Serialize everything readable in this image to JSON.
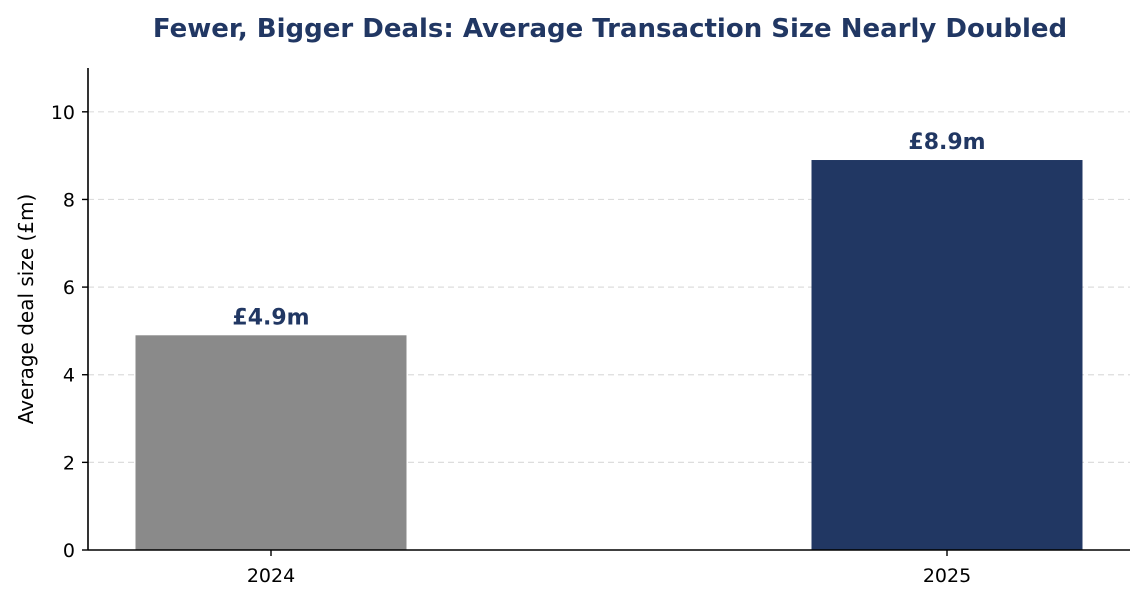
{
  "chart_data": {
    "type": "bar",
    "title": "Fewer, Bigger Deals: Average Transaction Size Nearly Doubled",
    "xlabel": "",
    "ylabel": "Average deal size (£m)",
    "categories": [
      "2024",
      "2025"
    ],
    "values": [
      4.9,
      8.9
    ],
    "value_labels": [
      "£4.9m",
      "£8.9m"
    ],
    "bar_colors": [
      "#8a8a8a",
      "#213763"
    ],
    "title_color": "#213763",
    "value_label_color": "#213763",
    "grid_color": "#dddddd",
    "ylim": [
      0,
      11
    ],
    "yticks": [
      0,
      2,
      4,
      6,
      8,
      10
    ],
    "ytick_labels": [
      "0",
      "2",
      "4",
      "6",
      "8",
      "10"
    ],
    "grid": "horizontal, dashed",
    "legend": "none"
  }
}
